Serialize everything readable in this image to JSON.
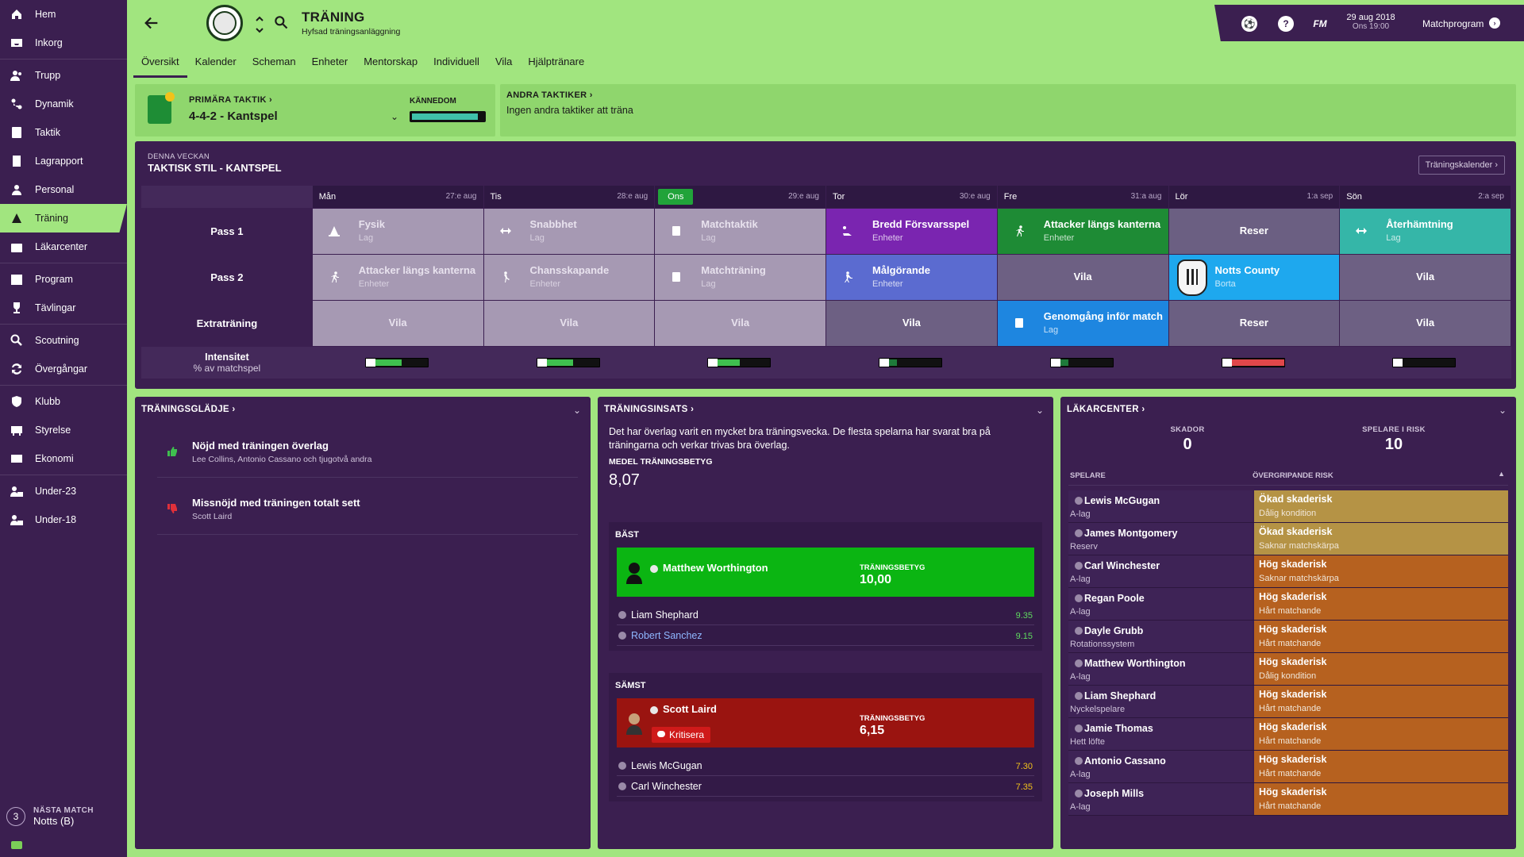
{
  "nav": [
    {
      "label": "Hem",
      "icon": "home-icon"
    },
    {
      "label": "Inkorg",
      "icon": "inbox-icon"
    },
    {
      "sep": true
    },
    {
      "label": "Trupp",
      "icon": "squad-icon"
    },
    {
      "label": "Dynamik",
      "icon": "dynamics-icon"
    },
    {
      "label": "Taktik",
      "icon": "tactics-icon"
    },
    {
      "label": "Lagrapport",
      "icon": "report-icon"
    },
    {
      "label": "Personal",
      "icon": "staff-icon"
    },
    {
      "label": "Träning",
      "icon": "training-icon",
      "active": true
    },
    {
      "label": "Läkarcenter",
      "icon": "medical-icon"
    },
    {
      "sep": true
    },
    {
      "label": "Program",
      "icon": "calendar-icon"
    },
    {
      "label": "Tävlingar",
      "icon": "trophy-icon"
    },
    {
      "sep": true
    },
    {
      "label": "Scoutning",
      "icon": "search-icon"
    },
    {
      "label": "Övergångar",
      "icon": "transfer-icon"
    },
    {
      "sep": true
    },
    {
      "label": "Klubb",
      "icon": "shield-icon"
    },
    {
      "label": "Styrelse",
      "icon": "board-icon"
    },
    {
      "label": "Ekonomi",
      "icon": "finance-icon"
    },
    {
      "sep": true
    },
    {
      "label": "Under-23",
      "icon": "u23-icon"
    },
    {
      "label": "Under-18",
      "icon": "u18-icon"
    }
  ],
  "next_match": {
    "number": "3",
    "label": "NÄSTA MATCH",
    "value": "Notts (B)"
  },
  "header": {
    "title": "TRÄNING",
    "subtitle": "Hyfsad träningsanläggning"
  },
  "tabs": [
    "Översikt",
    "Kalender",
    "Scheman",
    "Enheter",
    "Mentorskap",
    "Individuell",
    "Vila",
    "Hjälptränare"
  ],
  "topbar": {
    "fm": "FM",
    "date": "29 aug 2018",
    "time": "Ons 19:00",
    "action": "Matchprogram",
    "help": "?"
  },
  "tactics": {
    "primary_label": "PRIMÄRA TAKTIK ›",
    "primary_value": "4-4-2 - Kantspel",
    "familiarity_label": "KÄNNEDOM",
    "familiarity": 0.92,
    "other_label": "ANDRA TAKTIKER ›",
    "other_value": "Ingen andra taktiker att träna"
  },
  "week": {
    "small": "DENNA VECKAN",
    "title": "TAKTISK STIL - KANTSPEL",
    "calendar_button": "Träningskalender",
    "days": [
      {
        "name": "Mån",
        "date": "27:e aug"
      },
      {
        "name": "Tis",
        "date": "28:e aug"
      },
      {
        "name": "Ons",
        "date": "29:e aug",
        "today": true
      },
      {
        "name": "Tor",
        "date": "30:e aug"
      },
      {
        "name": "Fre",
        "date": "31:a aug"
      },
      {
        "name": "Lör",
        "date": "1:a sep"
      },
      {
        "name": "Sön",
        "date": "2:a sep"
      }
    ],
    "rows": [
      {
        "label": "Pass 1",
        "cells": [
          {
            "t": "Fysik",
            "s": "Lag",
            "c": "c-gray",
            "icon": "cone-icon"
          },
          {
            "t": "Snabbhet",
            "s": "Lag",
            "c": "c-gray",
            "icon": "speed-icon"
          },
          {
            "t": "Matchtaktik",
            "s": "Lag",
            "c": "c-gray",
            "icon": "board-icon"
          },
          {
            "t": "Bredd Försvarsspel",
            "s": "Enheter",
            "c": "c-purple",
            "icon": "tackle-icon"
          },
          {
            "t": "Attacker längs kanterna",
            "s": "Enheter",
            "c": "c-green",
            "icon": "run-icon"
          },
          {
            "t": "Reser",
            "s": "",
            "c": "c-slate",
            "center": true
          },
          {
            "t": "Återhämtning",
            "s": "Lag",
            "c": "c-teal",
            "icon": "recovery-icon"
          }
        ]
      },
      {
        "label": "Pass 2",
        "cells": [
          {
            "t": "Attacker längs kanterna",
            "s": "Enheter",
            "c": "c-gray",
            "icon": "run-icon"
          },
          {
            "t": "Chansskapande",
            "s": "Enheter",
            "c": "c-gray",
            "icon": "kick-icon"
          },
          {
            "t": "Matchträning",
            "s": "Lag",
            "c": "c-gray",
            "icon": "board-icon"
          },
          {
            "t": "Målgörande",
            "s": "Enheter",
            "c": "c-lav",
            "icon": "shoot-icon"
          },
          {
            "t": "Vila",
            "s": "",
            "c": "c-dim",
            "center": true
          },
          {
            "t": "Notts County",
            "s": "Borta",
            "c": "c-club",
            "club": true
          },
          {
            "t": "Vila",
            "s": "",
            "c": "c-dim",
            "center": true
          }
        ]
      },
      {
        "label": "Extraträning",
        "cells": [
          {
            "t": "Vila",
            "s": "",
            "c": "c-gray",
            "center": true
          },
          {
            "t": "Vila",
            "s": "",
            "c": "c-gray",
            "center": true
          },
          {
            "t": "Vila",
            "s": "",
            "c": "c-gray",
            "center": true
          },
          {
            "t": "Vila",
            "s": "",
            "c": "c-dim",
            "center": true
          },
          {
            "t": "Genomgång inför match",
            "s": "Lag",
            "c": "c-blue",
            "icon": "board-icon"
          },
          {
            "t": "Reser",
            "s": "",
            "c": "c-slate",
            "center": true
          },
          {
            "t": "Vila",
            "s": "",
            "c": "c-dim",
            "center": true
          }
        ]
      }
    ],
    "intensity_label": "Intensitet",
    "intensity_sub": "% av matchspel",
    "intensity": [
      {
        "v": 0.5,
        "color": "#3fbf4f"
      },
      {
        "v": 0.5,
        "color": "#3fbf4f"
      },
      {
        "v": 0.42,
        "color": "#3fbf4f"
      },
      {
        "v": 0.15,
        "color": "#1e7a3a"
      },
      {
        "v": 0.15,
        "color": "#1e7a3a"
      },
      {
        "v": 1.0,
        "color": "#e0474a"
      },
      {
        "v": 0.0,
        "color": "#111111"
      }
    ]
  },
  "happiness": {
    "title": "TRÄNINGSGLÄDJE ›",
    "items": [
      {
        "t": "Nöjd med träningen överlag",
        "s": "Lee Collins, Antonio Cassano och tjugotvå andra",
        "icon": "thumbs-up-icon",
        "color": "#3fbf4f"
      },
      {
        "t": "Missnöjd med träningen totalt sett",
        "s": "Scott Laird",
        "icon": "thumbs-down-icon",
        "color": "#e0303a"
      }
    ]
  },
  "effort": {
    "title": "TRÄNINGSINSATS ›",
    "intro": "Det har överlag varit en mycket bra träningsvecka. De flesta spelarna har svarat bra på träningarna och verkar trivas bra överlag.",
    "avg_label": "MEDEL TRÄNINGSBETYG",
    "avg_value": "8,07",
    "best_label": "BÄST",
    "best": {
      "name": "Matthew Worthington",
      "rating_label": "TRÄNINGSBETYG",
      "rating": "10,00"
    },
    "best_list": [
      {
        "name": "Liam Shephard",
        "value": "9.35",
        "link": false
      },
      {
        "name": "Robert Sanchez",
        "value": "9.15",
        "link": true
      }
    ],
    "worst_label": "SÄMST",
    "worst": {
      "name": "Scott Laird",
      "rating_label": "TRÄNINGSBETYG",
      "rating": "6,15",
      "action": "Kritisera"
    },
    "worst_list": [
      {
        "name": "Lewis McGugan",
        "value": "7.30"
      },
      {
        "name": "Carl Winchester",
        "value": "7.35"
      }
    ]
  },
  "medical": {
    "title": "LÄKARCENTER ›",
    "injuries_label": "SKADOR",
    "injuries": "0",
    "risk_label": "SPELARE I RISK",
    "risk": "10",
    "col_player": "SPELARE",
    "col_risk": "ÖVERGRIPANDE RISK",
    "rows": [
      {
        "n": "Lewis McGugan",
        "r": "A-lag",
        "t": "Ökad skaderisk",
        "s": "Dålig kondition",
        "level": "yellow"
      },
      {
        "n": "James Montgomery",
        "r": "Reserv",
        "t": "Ökad skaderisk",
        "s": "Saknar matchskärpa",
        "level": "yellow"
      },
      {
        "n": "Carl Winchester",
        "r": "A-lag",
        "t": "Hög skaderisk",
        "s": "Saknar matchskärpa",
        "level": "orange"
      },
      {
        "n": "Regan Poole",
        "r": "A-lag",
        "t": "Hög skaderisk",
        "s": "Hårt matchande",
        "level": "orange"
      },
      {
        "n": "Dayle Grubb",
        "r": "Rotationssystem",
        "t": "Hög skaderisk",
        "s": "Hårt matchande",
        "level": "orange"
      },
      {
        "n": "Matthew Worthington",
        "r": "A-lag",
        "t": "Hög skaderisk",
        "s": "Dålig kondition",
        "level": "orange"
      },
      {
        "n": "Liam Shephard",
        "r": "Nyckelspelare",
        "t": "Hög skaderisk",
        "s": "Hårt matchande",
        "level": "orange"
      },
      {
        "n": "Jamie Thomas",
        "r": "Hett löfte",
        "t": "Hög skaderisk",
        "s": "Hårt matchande",
        "level": "orange"
      },
      {
        "n": "Antonio Cassano",
        "r": "A-lag",
        "t": "Hög skaderisk",
        "s": "Hårt matchande",
        "level": "orange"
      },
      {
        "n": "Joseph Mills",
        "r": "A-lag",
        "t": "Hög skaderisk",
        "s": "Hårt matchande",
        "level": "orange"
      }
    ]
  }
}
